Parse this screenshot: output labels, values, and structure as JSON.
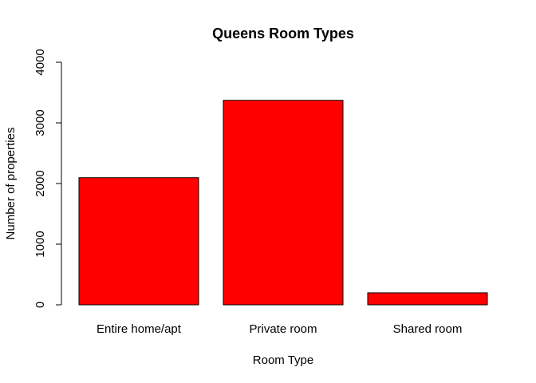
{
  "chart_data": {
    "type": "bar",
    "title": "Queens Room Types",
    "xlabel": "Room Type",
    "ylabel": "Number of properties",
    "categories": [
      "Entire home/apt",
      "Private room",
      "Shared room"
    ],
    "values": [
      2096,
      3372,
      198
    ],
    "ylim": [
      0,
      4000
    ],
    "yticks": [
      "0",
      "1000",
      "2000",
      "3000",
      "4000"
    ],
    "ytick_values": [
      0,
      1000,
      2000,
      3000,
      4000
    ],
    "bar_color": "#FF0000",
    "grid": false
  }
}
